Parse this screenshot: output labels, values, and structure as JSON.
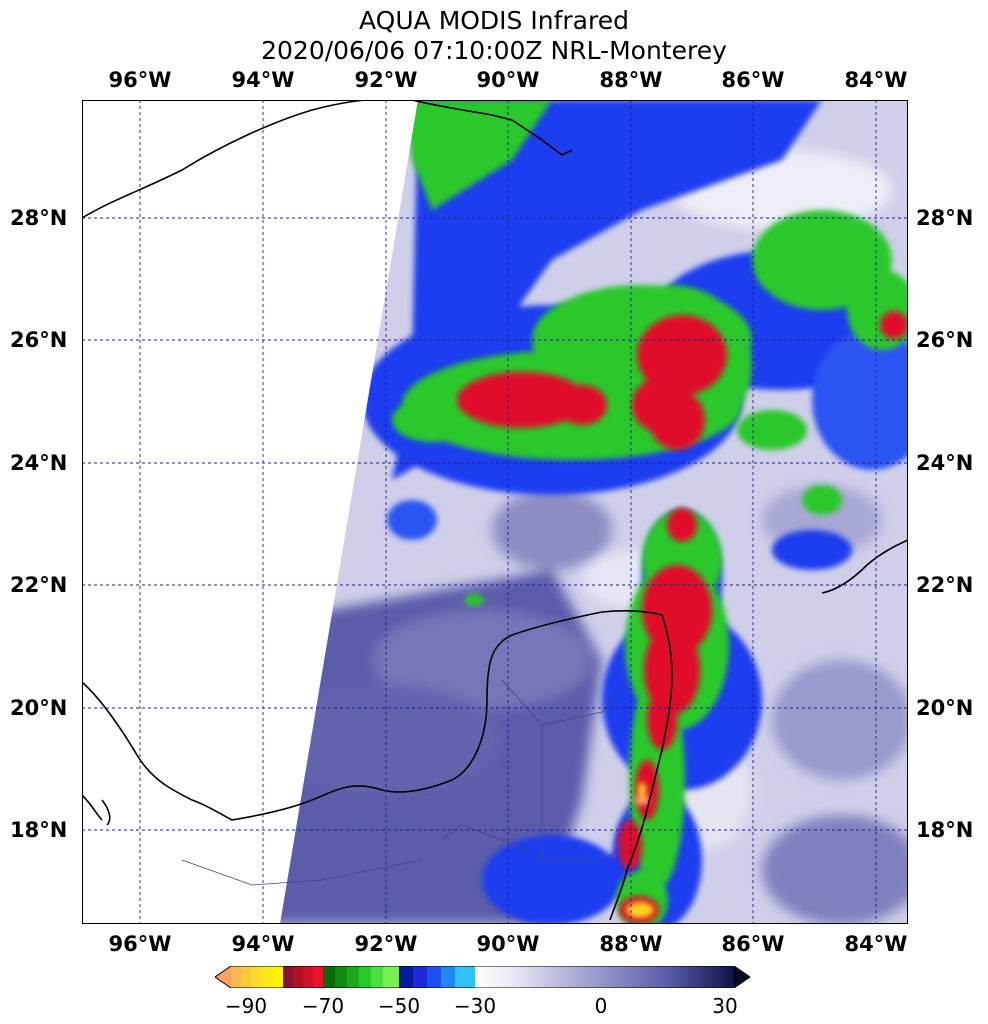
{
  "title": {
    "line1": "AQUA MODIS Infrared",
    "line2": "2020/06/06 07:10:00Z NRL-Monterey"
  },
  "map": {
    "lon_labels": [
      "96°W",
      "94°W",
      "92°W",
      "90°W",
      "88°W",
      "86°W",
      "84°W"
    ],
    "lat_labels": [
      "28°N",
      "26°N",
      "24°N",
      "22°N",
      "20°N",
      "18°N"
    ],
    "extent": {
      "lon_min": -97,
      "lon_max": -83.5,
      "lat_min": 16.5,
      "lat_max": 29.8
    },
    "gridline_style": "dashed",
    "gridline_color": "#1e1e8c",
    "no_data_color": "#ffffff"
  },
  "colorbar": {
    "tick_labels": [
      "−90",
      "−70",
      "−50",
      "−30",
      "0",
      "30"
    ],
    "tick_values": [
      -90,
      -70,
      -50,
      -30,
      0,
      30
    ],
    "range": [
      -95,
      30
    ],
    "extend": "both",
    "low_extend_color": "#f7a35c",
    "high_extend_color": "#050520",
    "colors": {
      "yellow": "#ffd21e",
      "red": "#e0102a",
      "green": "#28c828",
      "blue": "#1e3cff",
      "lavender": "#d4d4ee",
      "slate": "#5a5aa8",
      "navy": "#0a0a3c"
    }
  }
}
